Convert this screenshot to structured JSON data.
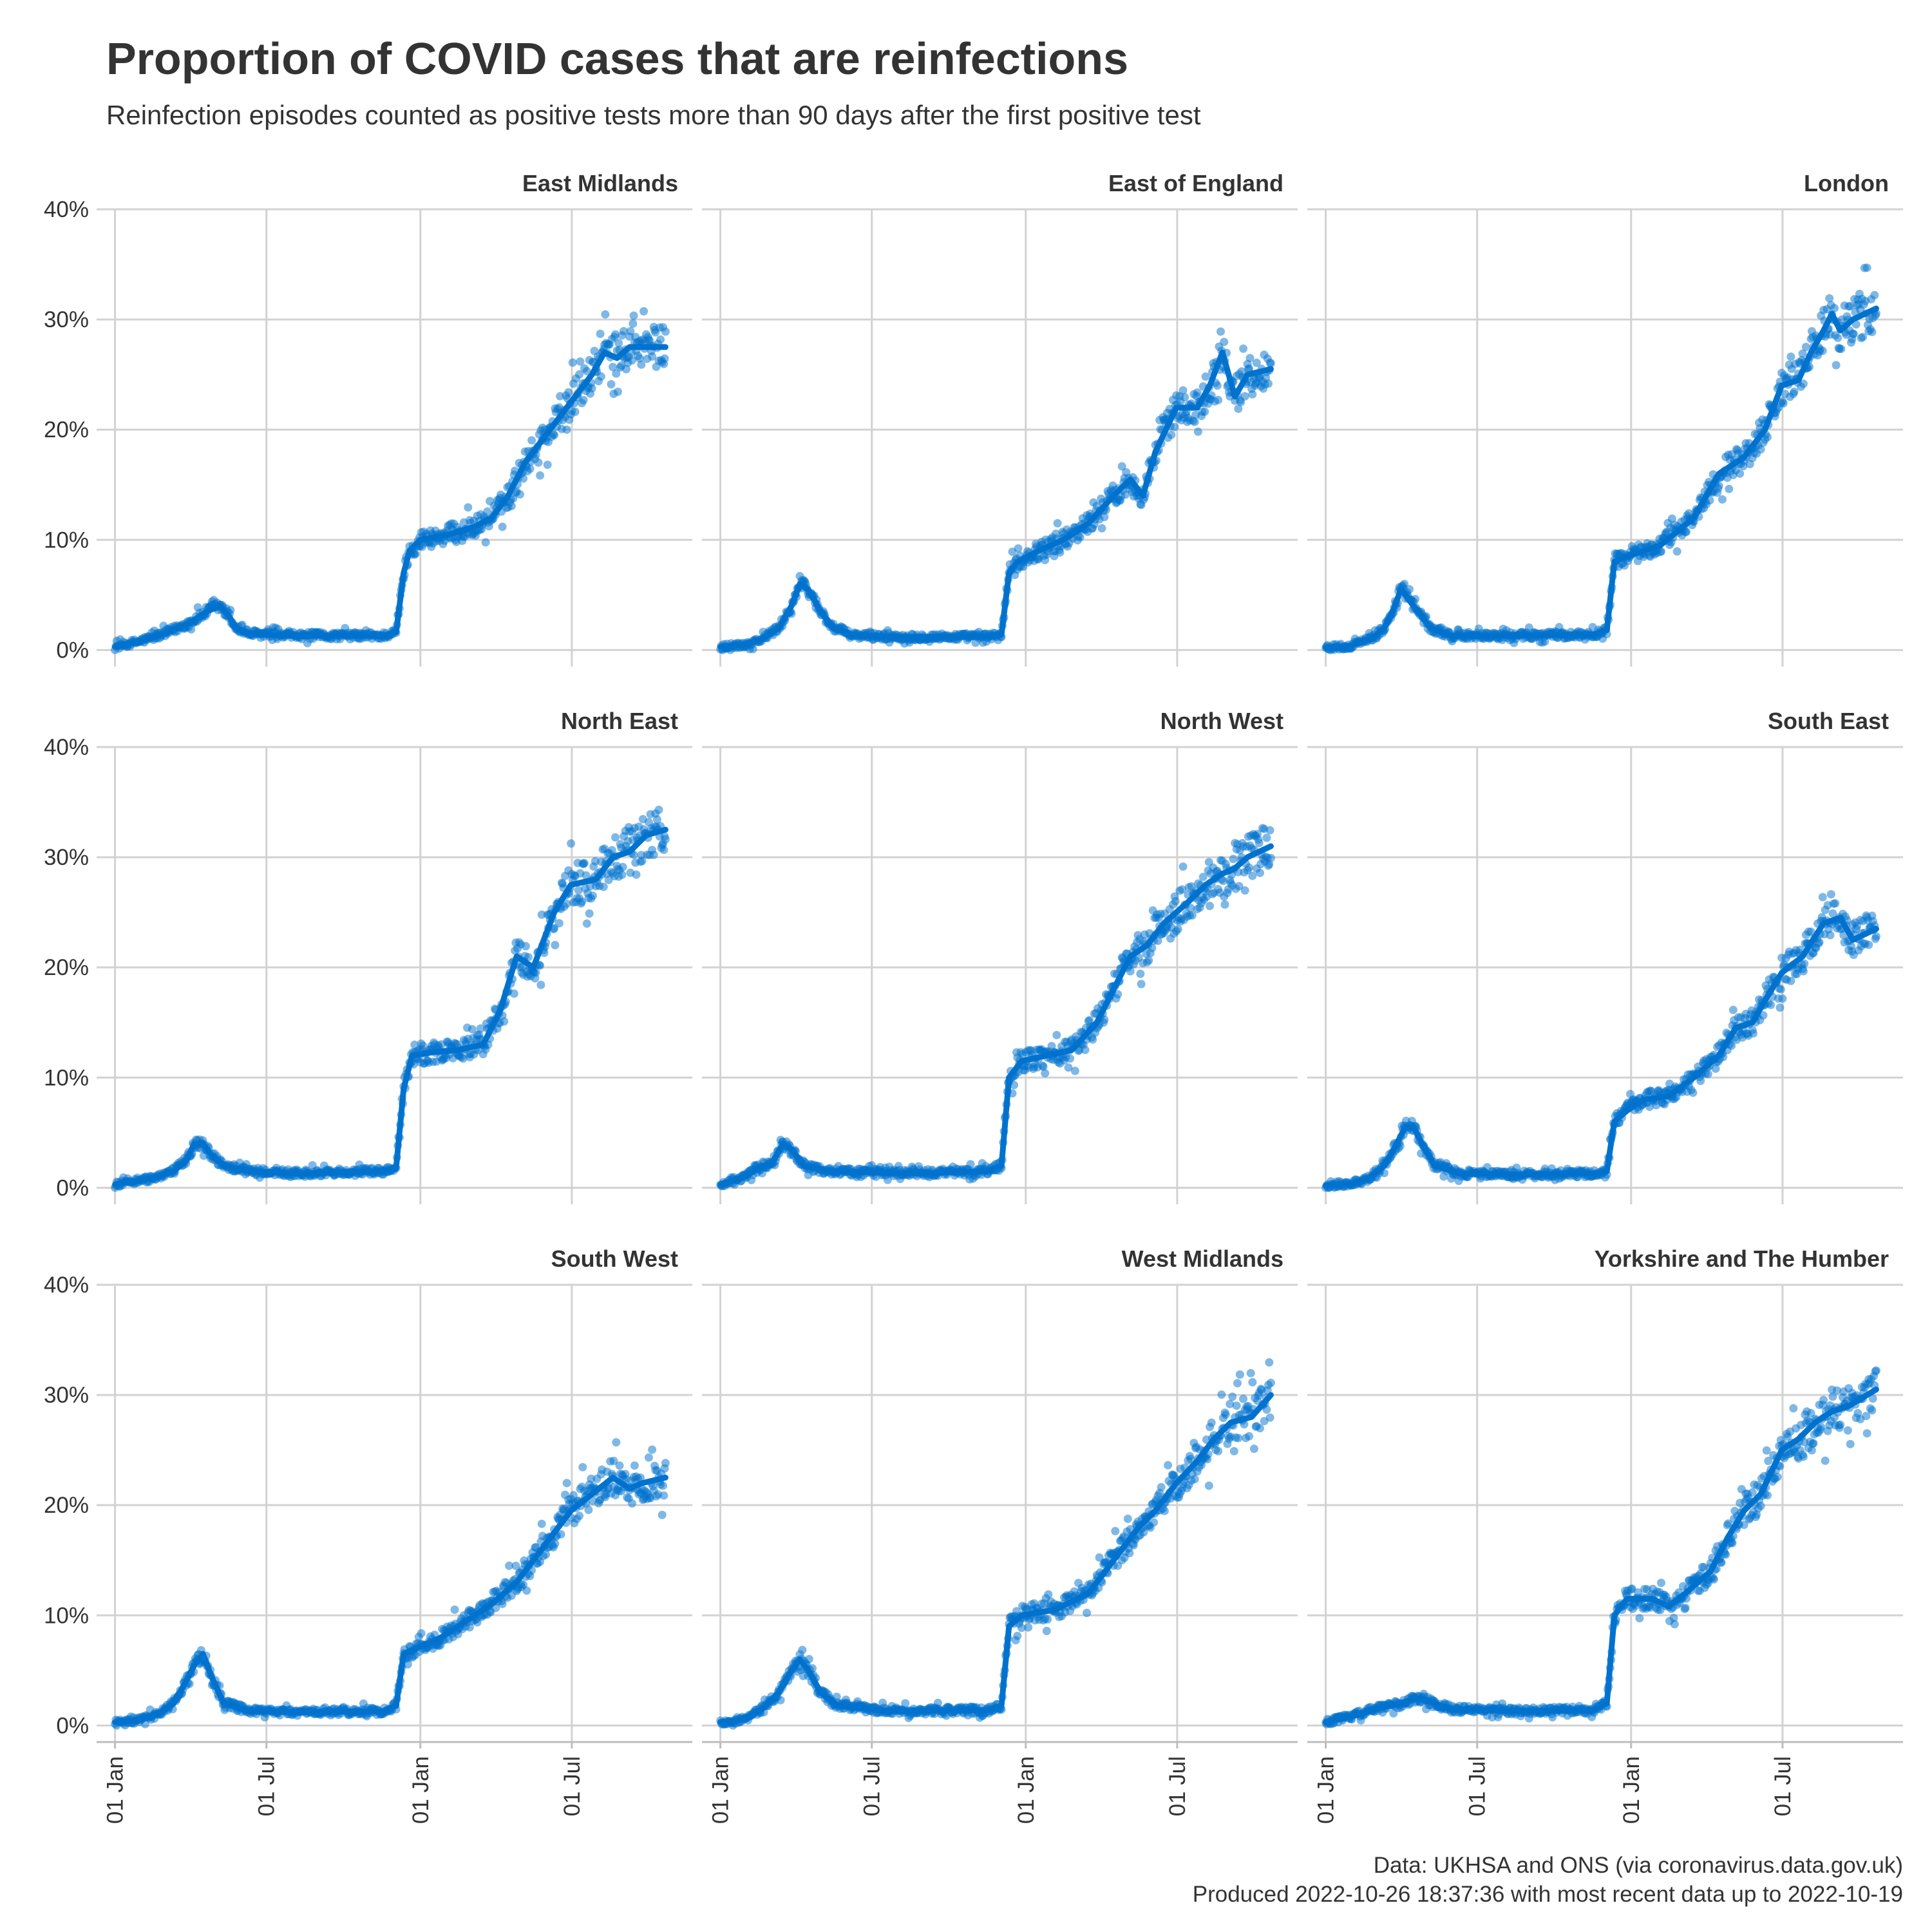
{
  "title": "Proportion of COVID cases that are reinfections",
  "subtitle": "Reinfection episodes counted as positive tests more than 90 days after the first positive test",
  "caption": {
    "line1": "Data: UKHSA and ONS (via coronavirus.data.gov.uk)",
    "line2": "Produced 2022-10-26 18:37:36 with most recent data up to 2022-10-19"
  },
  "colors": {
    "point": "#0072CE",
    "line": "#0072CE",
    "grid": "#d2d2d2",
    "text": "#333333"
  },
  "chart_data": {
    "type": "scatter",
    "overlay": "line",
    "x_axis": {
      "tick_labels": [
        "01 Jan",
        "01 Jul",
        "01 Jan",
        "01 Jul"
      ],
      "range": [
        "2021-01-01",
        "2022-10-19"
      ]
    },
    "y_axis": {
      "tick_labels": [
        "0%",
        "10%",
        "20%",
        "30%",
        "40%"
      ],
      "ticks": [
        0,
        10,
        20,
        30,
        40
      ],
      "ylim": [
        -1.5,
        40
      ]
    },
    "grid": true,
    "x_ticks_days": [
      0,
      181,
      365,
      546
    ],
    "panels": [
      {
        "name": "East Midlands",
        "trend": [
          [
            0,
            0.3
          ],
          [
            30,
            0.8
          ],
          [
            60,
            1.5
          ],
          [
            90,
            2.5
          ],
          [
            110,
            3.5
          ],
          [
            125,
            4
          ],
          [
            135,
            3.2
          ],
          [
            145,
            2
          ],
          [
            160,
            1.5
          ],
          [
            200,
            1.3
          ],
          [
            260,
            1.3
          ],
          [
            320,
            1.3
          ],
          [
            336,
            1.6
          ],
          [
            345,
            7
          ],
          [
            352,
            9
          ],
          [
            365,
            10
          ],
          [
            400,
            10.5
          ],
          [
            430,
            11.2
          ],
          [
            450,
            12
          ],
          [
            470,
            14
          ],
          [
            490,
            17
          ],
          [
            505,
            18.5
          ],
          [
            520,
            20
          ],
          [
            545,
            22.5
          ],
          [
            570,
            25
          ],
          [
            585,
            27
          ],
          [
            600,
            26.5
          ],
          [
            615,
            27.5
          ],
          [
            658,
            27.5
          ]
        ]
      },
      {
        "name": "East of England",
        "trend": [
          [
            0,
            0.3
          ],
          [
            30,
            0.5
          ],
          [
            50,
            1
          ],
          [
            70,
            2
          ],
          [
            85,
            4
          ],
          [
            95,
            6
          ],
          [
            105,
            5.5
          ],
          [
            120,
            3.5
          ],
          [
            135,
            2
          ],
          [
            160,
            1.3
          ],
          [
            220,
            1.2
          ],
          [
            320,
            1.2
          ],
          [
            336,
            1.4
          ],
          [
            345,
            7
          ],
          [
            355,
            8
          ],
          [
            380,
            9
          ],
          [
            410,
            10
          ],
          [
            440,
            11.5
          ],
          [
            470,
            14
          ],
          [
            490,
            15.5
          ],
          [
            505,
            14
          ],
          [
            520,
            18
          ],
          [
            545,
            22
          ],
          [
            570,
            22
          ],
          [
            585,
            24
          ],
          [
            600,
            27
          ],
          [
            615,
            23
          ],
          [
            630,
            25
          ],
          [
            658,
            25.5
          ]
        ]
      },
      {
        "name": "London",
        "trend": [
          [
            0,
            0.2
          ],
          [
            30,
            0.4
          ],
          [
            55,
            1
          ],
          [
            70,
            2
          ],
          [
            80,
            3.5
          ],
          [
            90,
            5.5
          ],
          [
            100,
            4.5
          ],
          [
            110,
            3.5
          ],
          [
            125,
            2
          ],
          [
            150,
            1.3
          ],
          [
            220,
            1.3
          ],
          [
            320,
            1.4
          ],
          [
            336,
            1.8
          ],
          [
            345,
            8
          ],
          [
            360,
            8.5
          ],
          [
            400,
            9.5
          ],
          [
            440,
            12
          ],
          [
            470,
            16
          ],
          [
            500,
            17.5
          ],
          [
            525,
            20
          ],
          [
            545,
            24
          ],
          [
            565,
            24.5
          ],
          [
            580,
            27
          ],
          [
            595,
            29
          ],
          [
            605,
            30.5
          ],
          [
            615,
            29
          ],
          [
            630,
            30
          ],
          [
            658,
            31
          ]
        ]
      },
      {
        "name": "North East",
        "trend": [
          [
            0,
            0.3
          ],
          [
            40,
            0.8
          ],
          [
            70,
            1.5
          ],
          [
            85,
            2.5
          ],
          [
            95,
            4
          ],
          [
            105,
            4
          ],
          [
            115,
            3
          ],
          [
            130,
            2
          ],
          [
            160,
            1.5
          ],
          [
            220,
            1.3
          ],
          [
            320,
            1.5
          ],
          [
            336,
            1.8
          ],
          [
            345,
            9
          ],
          [
            355,
            12
          ],
          [
            380,
            12.3
          ],
          [
            410,
            12.5
          ],
          [
            440,
            13
          ],
          [
            460,
            16
          ],
          [
            480,
            21
          ],
          [
            500,
            20
          ],
          [
            525,
            25
          ],
          [
            545,
            27.5
          ],
          [
            575,
            28
          ],
          [
            595,
            30
          ],
          [
            615,
            30.5
          ],
          [
            635,
            32
          ],
          [
            658,
            32.5
          ]
        ]
      },
      {
        "name": "North West",
        "trend": [
          [
            0,
            0.3
          ],
          [
            30,
            1
          ],
          [
            50,
            2
          ],
          [
            60,
            2
          ],
          [
            75,
            4
          ],
          [
            85,
            3.5
          ],
          [
            100,
            2
          ],
          [
            130,
            1.5
          ],
          [
            220,
            1.3
          ],
          [
            320,
            1.5
          ],
          [
            336,
            2
          ],
          [
            345,
            10
          ],
          [
            360,
            11.5
          ],
          [
            390,
            12
          ],
          [
            420,
            12.5
          ],
          [
            450,
            15
          ],
          [
            470,
            18
          ],
          [
            490,
            21
          ],
          [
            510,
            22
          ],
          [
            530,
            24
          ],
          [
            560,
            26
          ],
          [
            580,
            27.5
          ],
          [
            600,
            28.5
          ],
          [
            615,
            29
          ],
          [
            630,
            30
          ],
          [
            658,
            31
          ]
        ]
      },
      {
        "name": "South East",
        "trend": [
          [
            0,
            0.2
          ],
          [
            30,
            0.4
          ],
          [
            50,
            0.8
          ],
          [
            70,
            2
          ],
          [
            85,
            4
          ],
          [
            95,
            5.5
          ],
          [
            105,
            5.5
          ],
          [
            115,
            4
          ],
          [
            130,
            2
          ],
          [
            160,
            1.3
          ],
          [
            220,
            1.2
          ],
          [
            320,
            1.3
          ],
          [
            336,
            1.5
          ],
          [
            345,
            6
          ],
          [
            360,
            7
          ],
          [
            380,
            8
          ],
          [
            410,
            8.3
          ],
          [
            440,
            10
          ],
          [
            470,
            12
          ],
          [
            490,
            14.5
          ],
          [
            510,
            15
          ],
          [
            525,
            17
          ],
          [
            545,
            19.5
          ],
          [
            570,
            21
          ],
          [
            595,
            24
          ],
          [
            615,
            24.5
          ],
          [
            630,
            22.5
          ],
          [
            658,
            23.5
          ]
        ]
      },
      {
        "name": "South West",
        "trend": [
          [
            0,
            0.3
          ],
          [
            30,
            0.5
          ],
          [
            50,
            1
          ],
          [
            70,
            2
          ],
          [
            85,
            4
          ],
          [
            95,
            5.5
          ],
          [
            105,
            6.5
          ],
          [
            115,
            4.5
          ],
          [
            130,
            2
          ],
          [
            160,
            1.3
          ],
          [
            220,
            1.2
          ],
          [
            320,
            1.3
          ],
          [
            336,
            1.8
          ],
          [
            345,
            6.5
          ],
          [
            360,
            7
          ],
          [
            390,
            8
          ],
          [
            420,
            9.5
          ],
          [
            450,
            11
          ],
          [
            480,
            13
          ],
          [
            505,
            15.5
          ],
          [
            530,
            18
          ],
          [
            545,
            19.5
          ],
          [
            570,
            21
          ],
          [
            595,
            22.5
          ],
          [
            615,
            21.5
          ],
          [
            630,
            22
          ],
          [
            658,
            22.5
          ]
        ]
      },
      {
        "name": "West Midlands",
        "trend": [
          [
            0,
            0.3
          ],
          [
            30,
            0.6
          ],
          [
            50,
            1.5
          ],
          [
            70,
            3
          ],
          [
            85,
            5
          ],
          [
            95,
            6
          ],
          [
            105,
            5
          ],
          [
            120,
            3
          ],
          [
            140,
            1.8
          ],
          [
            200,
            1.3
          ],
          [
            320,
            1.4
          ],
          [
            336,
            1.8
          ],
          [
            345,
            9
          ],
          [
            360,
            10
          ],
          [
            400,
            10.5
          ],
          [
            440,
            12
          ],
          [
            460,
            14
          ],
          [
            480,
            16
          ],
          [
            500,
            18
          ],
          [
            520,
            19.5
          ],
          [
            545,
            22
          ],
          [
            570,
            24
          ],
          [
            590,
            26
          ],
          [
            610,
            27.5
          ],
          [
            635,
            28
          ],
          [
            658,
            30
          ]
        ]
      },
      {
        "name": "Yorkshire and The Humber",
        "trend": [
          [
            0,
            0.3
          ],
          [
            30,
            0.8
          ],
          [
            60,
            1.5
          ],
          [
            90,
            2
          ],
          [
            110,
            2.5
          ],
          [
            130,
            2
          ],
          [
            150,
            1.5
          ],
          [
            220,
            1.3
          ],
          [
            320,
            1.4
          ],
          [
            336,
            2
          ],
          [
            345,
            10
          ],
          [
            360,
            11.5
          ],
          [
            390,
            11.5
          ],
          [
            410,
            10.8
          ],
          [
            430,
            12
          ],
          [
            460,
            14
          ],
          [
            480,
            17
          ],
          [
            500,
            19.5
          ],
          [
            520,
            21
          ],
          [
            545,
            25
          ],
          [
            565,
            26
          ],
          [
            585,
            27.5
          ],
          [
            605,
            28.5
          ],
          [
            625,
            29
          ],
          [
            658,
            30.5
          ]
        ]
      }
    ]
  }
}
